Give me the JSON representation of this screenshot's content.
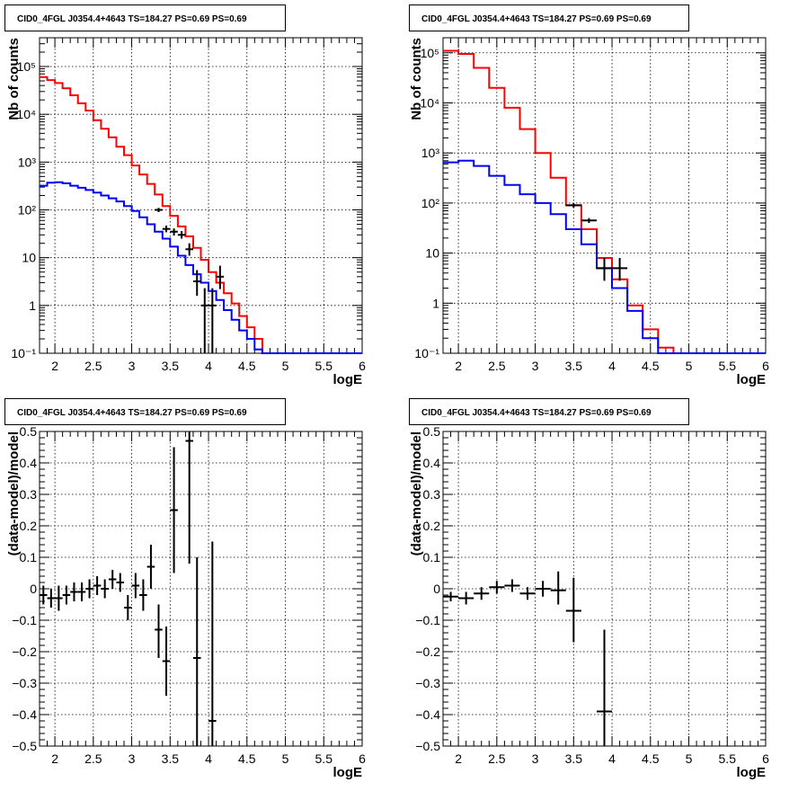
{
  "chart_data": [
    {
      "type": "line",
      "title": "CID0_4FGL J0354.4+4643 TS=184.27 PS=0.69 PS=0.69",
      "xlabel": "logE",
      "ylabel": "Nb of counts",
      "xlim": [
        1.8,
        6.0
      ],
      "ylim": [
        0.1,
        400000
      ],
      "y_scale": "log",
      "grid": true,
      "x_ticks": [
        "2",
        "2.5",
        "3",
        "3.5",
        "4",
        "4.5",
        "5",
        "5.5",
        "6"
      ],
      "y_ticks": [
        "10⁻¹",
        "1",
        "10",
        "10²",
        "10³",
        "10⁴",
        "10⁵"
      ],
      "series": [
        {
          "color": "#ff0000",
          "style": "step",
          "bin_edges": [
            1.8,
            1.9,
            2.0,
            2.1,
            2.2,
            2.3,
            2.4,
            2.5,
            2.6,
            2.7,
            2.8,
            2.9,
            3.0,
            3.1,
            3.2,
            3.3,
            3.4,
            3.5,
            3.6,
            3.7,
            3.8,
            3.9,
            4.0,
            4.1,
            4.2,
            4.3,
            4.4,
            4.5,
            4.6,
            4.7,
            4.8,
            4.9,
            5.0,
            5.1,
            5.2,
            5.3,
            5.4,
            5.5,
            5.6,
            5.7,
            5.8,
            5.9,
            6.0
          ],
          "values": [
            60000,
            52000,
            45000,
            35000,
            25000,
            17000,
            12000,
            7500,
            5000,
            3300,
            2100,
            1400,
            850,
            550,
            350,
            210,
            120,
            75,
            45,
            28,
            16,
            9,
            5,
            3,
            1.8,
            1.1,
            0.6,
            0.35,
            0.2,
            0.1,
            0.1,
            0.1,
            0.1,
            0.1,
            0.1,
            0.1,
            0.1,
            0.1,
            0.1,
            0.1,
            0.1,
            0.1
          ]
        },
        {
          "color": "#0000ff",
          "style": "step",
          "bin_edges": [
            1.8,
            1.9,
            2.0,
            2.1,
            2.2,
            2.3,
            2.4,
            2.5,
            2.6,
            2.7,
            2.8,
            2.9,
            3.0,
            3.1,
            3.2,
            3.3,
            3.4,
            3.5,
            3.6,
            3.7,
            3.8,
            3.9,
            4.0,
            4.1,
            4.2,
            4.3,
            4.4,
            4.5,
            4.6,
            4.7,
            4.8,
            4.9,
            5.0,
            5.1,
            5.2,
            5.3,
            5.4,
            5.5,
            5.6,
            5.7,
            5.8,
            5.9,
            6.0
          ],
          "values": [
            320,
            370,
            380,
            360,
            320,
            290,
            260,
            230,
            200,
            175,
            150,
            120,
            95,
            70,
            50,
            35,
            25,
            17,
            11,
            7,
            4.5,
            3,
            2,
            1.3,
            0.8,
            0.5,
            0.3,
            0.2,
            0.12,
            0.1,
            0.1,
            0.1,
            0.1,
            0.1,
            0.1,
            0.1,
            0.1,
            0.1,
            0.1,
            0.1,
            0.1,
            0.1
          ]
        },
        {
          "color": "#000000",
          "style": "points",
          "points": [
            {
              "x": 3.35,
              "y": 100,
              "xerr": 0.05,
              "ylo": 90,
              "yhi": 110
            },
            {
              "x": 3.45,
              "y": 40,
              "xerr": 0.05,
              "ylo": 34,
              "yhi": 47
            },
            {
              "x": 3.55,
              "y": 35,
              "xerr": 0.05,
              "ylo": 29,
              "yhi": 41
            },
            {
              "x": 3.65,
              "y": 30,
              "xerr": 0.05,
              "ylo": 25,
              "yhi": 36
            },
            {
              "x": 3.75,
              "y": 15,
              "xerr": 0.05,
              "ylo": 11,
              "yhi": 20
            },
            {
              "x": 3.85,
              "y": 3.2,
              "xerr": 0.05,
              "ylo": 1.6,
              "yhi": 5.5
            },
            {
              "x": 3.95,
              "y": 1.0,
              "xerr": 0.05,
              "ylo": 0.1,
              "yhi": 2.3
            },
            {
              "x": 4.05,
              "y": 1.0,
              "xerr": 0.05,
              "ylo": 0.1,
              "yhi": 2.3
            },
            {
              "x": 4.15,
              "y": 4.0,
              "xerr": 0.05,
              "ylo": 2.2,
              "yhi": 6.8
            }
          ]
        }
      ]
    },
    {
      "type": "line",
      "title": "CID0_4FGL J0354.4+4643 TS=184.27 PS=0.69 PS=0.69",
      "xlabel": "logE",
      "ylabel": "Nb of counts",
      "xlim": [
        1.8,
        6.0
      ],
      "ylim": [
        0.1,
        200000
      ],
      "y_scale": "log",
      "grid": true,
      "x_ticks": [
        "2",
        "2.5",
        "3",
        "3.5",
        "4",
        "4.5",
        "5",
        "5.5",
        "6"
      ],
      "y_ticks": [
        "10⁻¹",
        "1",
        "10",
        "10²",
        "10³",
        "10⁴",
        "10⁵"
      ],
      "series": [
        {
          "color": "#ff0000",
          "style": "step",
          "bin_edges": [
            1.8,
            2.0,
            2.2,
            2.4,
            2.6,
            2.8,
            3.0,
            3.2,
            3.4,
            3.6,
            3.8,
            4.0,
            4.2,
            4.4,
            4.6,
            4.8,
            5.0,
            5.2,
            5.4,
            5.6,
            5.8,
            6.0
          ],
          "values": [
            110000,
            95000,
            50000,
            20000,
            8000,
            3000,
            1000,
            320,
            90,
            30,
            8,
            3,
            0.9,
            0.3,
            0.13,
            0.1,
            0.1,
            0.1,
            0.1,
            0.1,
            0.1
          ]
        },
        {
          "color": "#0000ff",
          "style": "step",
          "bin_edges": [
            1.8,
            2.0,
            2.2,
            2.4,
            2.6,
            2.8,
            3.0,
            3.2,
            3.4,
            3.6,
            3.8,
            4.0,
            4.2,
            4.4,
            4.6,
            4.8,
            5.0,
            5.2,
            5.4,
            5.6,
            5.8,
            6.0
          ],
          "values": [
            650,
            700,
            550,
            350,
            230,
            150,
            100,
            60,
            30,
            15,
            5,
            2,
            0.7,
            0.2,
            0.1,
            0.1,
            0.1,
            0.1,
            0.1,
            0.1,
            0.1
          ]
        },
        {
          "color": "#000000",
          "style": "points",
          "points": [
            {
              "x": 3.5,
              "y": 90,
              "xerr": 0.1,
              "ylo": 80,
              "yhi": 100
            },
            {
              "x": 3.7,
              "y": 45,
              "xerr": 0.1,
              "ylo": 40,
              "yhi": 50
            },
            {
              "x": 3.9,
              "y": 5,
              "xerr": 0.1,
              "ylo": 2.8,
              "yhi": 8
            },
            {
              "x": 4.1,
              "y": 5,
              "xerr": 0.1,
              "ylo": 2.8,
              "yhi": 8
            }
          ]
        }
      ]
    },
    {
      "type": "scatter",
      "title": "CID0_4FGL J0354.4+4643 TS=184.27 PS=0.69 PS=0.69",
      "xlabel": "logE",
      "ylabel": "(data-model)/model",
      "xlim": [
        1.8,
        6.0
      ],
      "ylim": [
        -0.5,
        0.5
      ],
      "grid": true,
      "x_ticks": [
        "2",
        "2.5",
        "3",
        "3.5",
        "4",
        "4.5",
        "5",
        "5.5",
        "6"
      ],
      "y_ticks": [
        "−0.5",
        "−0.4",
        "−0.3",
        "−0.2",
        "−0.1",
        "0",
        "0.1",
        "0.2",
        "0.3",
        "0.4",
        "0.5"
      ],
      "series": [
        {
          "color": "#000000",
          "points": [
            {
              "x": 1.85,
              "y": -0.02,
              "xerr": 0.05,
              "ylo": -0.05,
              "yhi": 0.01
            },
            {
              "x": 1.95,
              "y": -0.03,
              "xerr": 0.05,
              "ylo": -0.06,
              "yhi": 0.0
            },
            {
              "x": 2.05,
              "y": -0.03,
              "xerr": 0.05,
              "ylo": -0.07,
              "yhi": 0.01
            },
            {
              "x": 2.15,
              "y": -0.02,
              "xerr": 0.05,
              "ylo": -0.05,
              "yhi": 0.01
            },
            {
              "x": 2.25,
              "y": -0.01,
              "xerr": 0.05,
              "ylo": -0.04,
              "yhi": 0.02
            },
            {
              "x": 2.35,
              "y": -0.01,
              "xerr": 0.05,
              "ylo": -0.04,
              "yhi": 0.02
            },
            {
              "x": 2.45,
              "y": 0.0,
              "xerr": 0.05,
              "ylo": -0.03,
              "yhi": 0.03
            },
            {
              "x": 2.55,
              "y": 0.01,
              "xerr": 0.05,
              "ylo": -0.02,
              "yhi": 0.04
            },
            {
              "x": 2.65,
              "y": 0.0,
              "xerr": 0.05,
              "ylo": -0.03,
              "yhi": 0.03
            },
            {
              "x": 2.75,
              "y": 0.03,
              "xerr": 0.05,
              "ylo": 0.0,
              "yhi": 0.06
            },
            {
              "x": 2.85,
              "y": 0.02,
              "xerr": 0.05,
              "ylo": -0.01,
              "yhi": 0.05
            },
            {
              "x": 2.95,
              "y": -0.06,
              "xerr": 0.05,
              "ylo": -0.1,
              "yhi": -0.02
            },
            {
              "x": 3.05,
              "y": 0.01,
              "xerr": 0.05,
              "ylo": -0.03,
              "yhi": 0.05
            },
            {
              "x": 3.15,
              "y": -0.02,
              "xerr": 0.05,
              "ylo": -0.07,
              "yhi": 0.03
            },
            {
              "x": 3.25,
              "y": 0.07,
              "xerr": 0.05,
              "ylo": 0.0,
              "yhi": 0.14
            },
            {
              "x": 3.35,
              "y": -0.13,
              "xerr": 0.05,
              "ylo": -0.22,
              "yhi": -0.05
            },
            {
              "x": 3.45,
              "y": -0.23,
              "xerr": 0.05,
              "ylo": -0.34,
              "yhi": -0.12
            },
            {
              "x": 3.55,
              "y": 0.25,
              "xerr": 0.05,
              "ylo": 0.05,
              "yhi": 0.45
            },
            {
              "x": 3.75,
              "y": 0.47,
              "xerr": 0.05,
              "ylo": 0.08,
              "yhi": 0.5
            },
            {
              "x": 3.85,
              "y": -0.22,
              "xerr": 0.05,
              "ylo": -0.5,
              "yhi": 0.1
            },
            {
              "x": 4.05,
              "y": -0.42,
              "xerr": 0.05,
              "ylo": -0.5,
              "yhi": 0.15
            }
          ]
        }
      ]
    },
    {
      "type": "scatter",
      "title": "CID0_4FGL J0354.4+4643 TS=184.27 PS=0.69 PS=0.69",
      "xlabel": "logE",
      "ylabel": "(data-model)/model",
      "xlim": [
        1.8,
        6.0
      ],
      "ylim": [
        -0.5,
        0.5
      ],
      "grid": true,
      "x_ticks": [
        "2",
        "2.5",
        "3",
        "3.5",
        "4",
        "4.5",
        "5",
        "5.5",
        "6"
      ],
      "y_ticks": [
        "−0.5",
        "−0.4",
        "−0.3",
        "−0.2",
        "−0.1",
        "0",
        "0.1",
        "0.2",
        "0.3",
        "0.4",
        "0.5"
      ],
      "series": [
        {
          "color": "#000000",
          "points": [
            {
              "x": 1.9,
              "y": -0.025,
              "xerr": 0.1,
              "ylo": -0.04,
              "yhi": -0.01
            },
            {
              "x": 2.1,
              "y": -0.03,
              "xerr": 0.1,
              "ylo": -0.05,
              "yhi": -0.01
            },
            {
              "x": 2.3,
              "y": -0.015,
              "xerr": 0.1,
              "ylo": -0.035,
              "yhi": 0.005
            },
            {
              "x": 2.5,
              "y": 0.005,
              "xerr": 0.1,
              "ylo": -0.015,
              "yhi": 0.025
            },
            {
              "x": 2.7,
              "y": 0.01,
              "xerr": 0.1,
              "ylo": -0.01,
              "yhi": 0.03
            },
            {
              "x": 2.9,
              "y": -0.015,
              "xerr": 0.1,
              "ylo": -0.035,
              "yhi": 0.005
            },
            {
              "x": 3.1,
              "y": 0.0,
              "xerr": 0.1,
              "ylo": -0.025,
              "yhi": 0.025
            },
            {
              "x": 3.3,
              "y": -0.005,
              "xerr": 0.1,
              "ylo": -0.05,
              "yhi": 0.055
            },
            {
              "x": 3.5,
              "y": -0.07,
              "xerr": 0.1,
              "ylo": -0.17,
              "yhi": 0.035
            },
            {
              "x": 3.9,
              "y": -0.39,
              "xerr": 0.1,
              "ylo": -0.5,
              "yhi": -0.13
            }
          ]
        }
      ]
    }
  ]
}
